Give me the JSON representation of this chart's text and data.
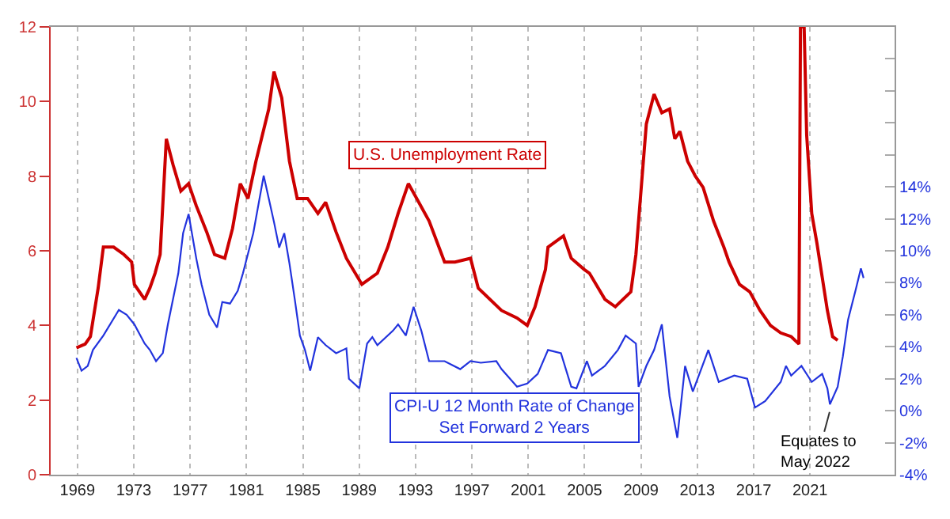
{
  "chart_data": {
    "type": "line",
    "series": [
      {
        "name": "U.S. Unemployment Rate",
        "color": "#cc0000",
        "axis": "y",
        "x": [
          1968.93,
          1969.55,
          1969.92,
          1970.47,
          1970.84,
          1971.57,
          1972.3,
          1972.85,
          1973.04,
          1973.77,
          1974.14,
          1974.51,
          1974.87,
          1975.31,
          1975.79,
          1976.34,
          1976.89,
          1977.44,
          1978.18,
          1978.73,
          1979.46,
          1980.01,
          1980.56,
          1981.11,
          1981.67,
          1982.58,
          1982.95,
          1983.5,
          1984.05,
          1984.6,
          1985.34,
          1986.07,
          1986.62,
          1987.36,
          1988.09,
          1989.19,
          1990.29,
          1991.03,
          1991.76,
          1992.49,
          1993.23,
          1993.96,
          1995.06,
          1995.8,
          1996.9,
          1997.45,
          1999.1,
          2000.2,
          2000.93,
          2001.48,
          2002.22,
          2002.4,
          2003.5,
          2004.05,
          2004.97,
          2005.34,
          2006.44,
          2007.18,
          2008.28,
          2008.64,
          2008.83,
          2009.38,
          2009.93,
          2010.48,
          2011.03,
          2011.4,
          2011.76,
          2012.31,
          2012.86,
          2013.41,
          2014.15,
          2014.88,
          2015.25,
          2015.99,
          2016.72,
          2017.45,
          2018.19,
          2018.92,
          2019.66,
          2020.21,
          2020.32,
          2020.58,
          2020.76,
          2021.12,
          2021.49,
          2021.86,
          2022.23,
          2022.6,
          2022.96
        ],
        "values": [
          3.4,
          3.5,
          3.7,
          5.0,
          6.1,
          6.1,
          5.9,
          5.7,
          5.1,
          4.7,
          5.0,
          5.4,
          5.9,
          9.0,
          8.3,
          7.6,
          7.8,
          7.2,
          6.5,
          5.9,
          5.8,
          6.6,
          7.8,
          7.4,
          8.4,
          9.8,
          10.8,
          10.1,
          8.4,
          7.4,
          7.4,
          7.0,
          7.3,
          6.5,
          5.8,
          5.1,
          5.4,
          6.1,
          7.0,
          7.8,
          7.3,
          6.8,
          5.7,
          5.7,
          5.8,
          5.0,
          4.4,
          4.2,
          4.0,
          4.5,
          5.5,
          6.1,
          6.4,
          5.8,
          5.5,
          5.4,
          4.7,
          4.5,
          4.9,
          5.9,
          6.8,
          9.4,
          10.2,
          9.7,
          9.8,
          9.0,
          9.2,
          8.4,
          8.0,
          7.7,
          6.8,
          6.1,
          5.7,
          5.1,
          4.9,
          4.4,
          4.0,
          3.8,
          3.7,
          3.5,
          12,
          12,
          9.1,
          7.0,
          6.2,
          5.3,
          4.4,
          3.7,
          3.6
        ]
      },
      {
        "name": "CPI-U 12 Month Rate of Change\nSet Forward 2 Years",
        "color": "#2233dd",
        "axis": "y2",
        "x": [
          1968.93,
          1969.29,
          1969.73,
          1970.1,
          1970.84,
          1971.94,
          1972.49,
          1973.04,
          1973.77,
          1974.14,
          1974.58,
          1975.06,
          1975.42,
          1976.16,
          1976.5,
          1976.89,
          1977.44,
          1977.81,
          1978.36,
          1978.91,
          1979.28,
          1979.83,
          1980.38,
          1980.75,
          1981.48,
          1982.22,
          1982.95,
          1983.32,
          1983.68,
          1984.05,
          1984.42,
          1984.79,
          1985.15,
          1985.52,
          1986.07,
          1986.62,
          1987.36,
          1988.09,
          1988.27,
          1989.01,
          1989.56,
          1989.93,
          1990.29,
          1991.39,
          1991.76,
          1992.31,
          1992.86,
          1993.41,
          1993.96,
          1995.06,
          1996.17,
          1996.9,
          1997.63,
          1998.73,
          1999.1,
          2000.2,
          2000.93,
          2001.67,
          2002.4,
          2003.32,
          2004.05,
          2004.42,
          2005.16,
          2005.52,
          2006.44,
          2007.36,
          2007.91,
          2008.64,
          2008.83,
          2009.38,
          2009.93,
          2010.48,
          2011.03,
          2011.58,
          2012.13,
          2012.68,
          2013.78,
          2014.52,
          2015.62,
          2016.54,
          2017.09,
          2017.82,
          2018.92,
          2019.29,
          2019.66,
          2020.39,
          2021.12,
          2021.86,
          2022.23,
          2022.41,
          2022.96,
          2023.33,
          2023.7,
          2024.25,
          2024.61,
          2024.8
        ],
        "values": [
          3.3,
          2.5,
          2.8,
          3.8,
          4.7,
          6.3,
          6.0,
          5.4,
          4.2,
          3.8,
          3.1,
          3.6,
          5.4,
          8.6,
          11.1,
          12.3,
          9.5,
          7.9,
          6.0,
          5.2,
          6.8,
          6.7,
          7.5,
          8.6,
          11.1,
          14.7,
          11.8,
          10.2,
          11.1,
          9.2,
          7.0,
          4.7,
          3.8,
          2.5,
          4.6,
          4.1,
          3.6,
          3.9,
          2.0,
          1.4,
          4.2,
          4.6,
          4.1,
          5.0,
          5.4,
          4.7,
          6.5,
          5.0,
          3.1,
          3.1,
          2.6,
          3.1,
          3.0,
          3.1,
          2.6,
          1.5,
          1.7,
          2.3,
          3.8,
          3.6,
          1.5,
          1.4,
          3.1,
          2.2,
          2.8,
          3.8,
          4.7,
          4.2,
          1.5,
          2.8,
          3.8,
          5.4,
          0.9,
          -1.7,
          2.8,
          1.2,
          3.8,
          1.8,
          2.2,
          2.0,
          0.2,
          0.6,
          1.8,
          2.8,
          2.2,
          2.8,
          1.8,
          2.3,
          1.4,
          0.4,
          1.5,
          3.4,
          5.7,
          7.6,
          8.9,
          8.3
        ]
      }
    ],
    "xlim": [
      1967.1,
      2027.0
    ],
    "xticks": [
      1969,
      1973,
      1977,
      1981,
      1985,
      1989,
      1993,
      1997,
      2001,
      2005,
      2009,
      2013,
      2017,
      2021
    ],
    "ylim": [
      0,
      12
    ],
    "yticks": [
      0,
      2,
      4,
      6,
      8,
      10,
      12
    ],
    "y2lim": [
      -4,
      24
    ],
    "y2ticks": [
      {
        "value": -4,
        "label": "-4%"
      },
      {
        "value": -2,
        "label": "-2%"
      },
      {
        "value": 0,
        "label": "0%"
      },
      {
        "value": 2,
        "label": "2%"
      },
      {
        "value": 4,
        "label": "4%"
      },
      {
        "value": 6,
        "label": "6%"
      },
      {
        "value": 8,
        "label": "8%"
      },
      {
        "value": 10,
        "label": "10%"
      },
      {
        "value": 12,
        "label": "12%"
      },
      {
        "value": 14,
        "label": "14%"
      },
      {
        "value": 16,
        "label": null
      },
      {
        "value": 18,
        "label": null
      },
      {
        "value": 20,
        "label": null
      },
      {
        "value": 22,
        "label": null
      }
    ],
    "grid": "x",
    "legend": false,
    "annotations": [
      "Equates to\nMay 2022"
    ]
  }
}
